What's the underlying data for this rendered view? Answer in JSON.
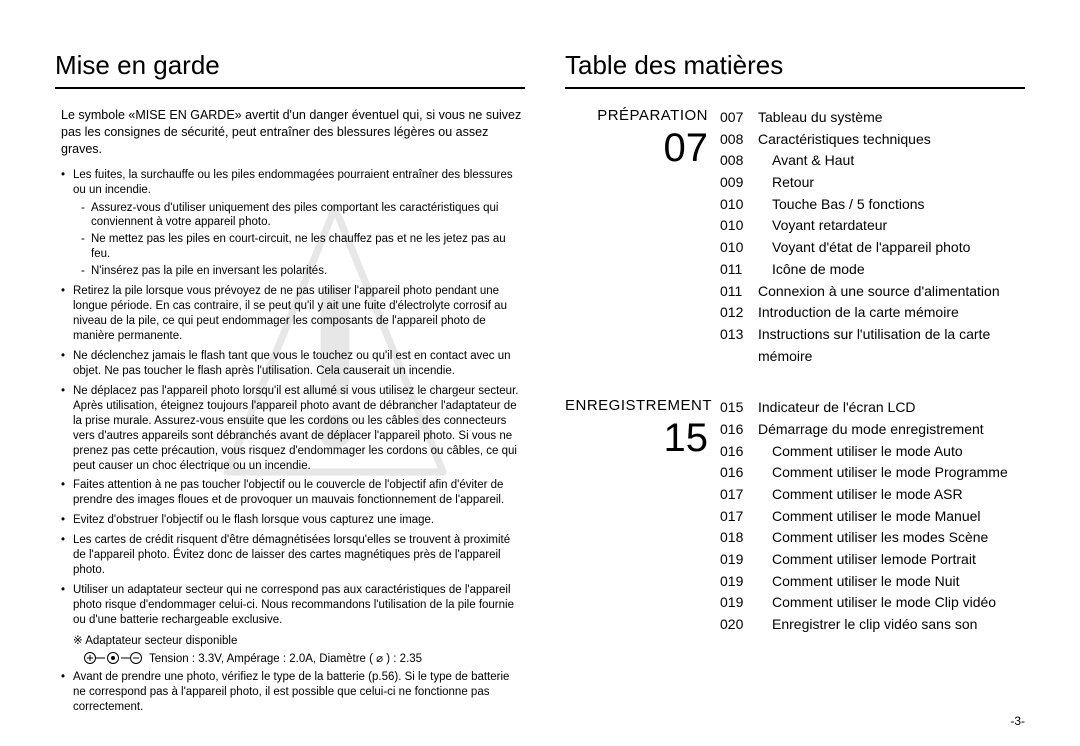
{
  "page_number": "-3-",
  "left": {
    "heading": "Mise en garde",
    "intro": "Le symbole «MISE EN GARDE» avertit d'un danger éventuel qui, si vous ne suivez pas les consignes de sécurité, peut entraîner des blessures légères ou assez graves.",
    "bullets": [
      {
        "text": "Les fuites, la surchauffe ou les piles endommagées pourraient entraîner des blessures ou un incendie.",
        "sub": [
          "Assurez-vous d'utiliser uniquement des piles comportant les caractéristiques qui conviennent à votre appareil photo.",
          "Ne mettez pas les piles en court-circuit, ne les chauffez pas et ne les jetez pas au feu.",
          "N'insérez pas la pile en inversant les polarités."
        ]
      },
      {
        "text": "Retirez la pile lorsque vous prévoyez de ne pas utiliser l'appareil photo pendant une longue période. En cas contraire, il se peut qu'il y ait une fuite d'électrolyte corrosif au niveau de la pile, ce qui peut endommager les composants de l'appareil photo de manière permanente."
      },
      {
        "text": "Ne déclenchez jamais le flash tant que vous le touchez ou qu'il est en contact avec un objet. Ne pas toucher le flash après l'utilisation. Cela causerait un incendie."
      },
      {
        "text": "Ne déplacez pas l'appareil photo lorsqu'il est allumé si vous utilisez le chargeur secteur. Après utilisation, éteignez toujours l'appareil photo avant de débrancher l'adaptateur de la prise murale. Assurez-vous ensuite que les cordons ou les câbles des connecteurs vers d'autres appareils sont débranchés avant de déplacer l'appareil photo. Si vous ne prenez pas cette précaution, vous risquez d'endommager les cordons ou câbles, ce qui peut causer un choc électrique ou un incendie."
      },
      {
        "text": "Faites attention à ne pas toucher l'objectif ou le couvercle de l'objectif afin d'éviter de prendre des images floues et de provoquer un mauvais fonctionnement de l'appareil."
      },
      {
        "text": "Evitez d'obstruer l'objectif ou le flash lorsque vous capturez une image."
      },
      {
        "text": "Les cartes de crédit risquent d'être démagnétisées lorsqu'elles se trouvent à proximité de l'appareil photo. Évitez donc de laisser des cartes magnétiques près de l'appareil photo."
      },
      {
        "text": "Utiliser un adaptateur secteur qui ne correspond pas aux caractéristiques de l'appareil photo risque d'endommager celui-ci. Nous recommandons l'utilisation de la pile fournie ou d'une batterie rechargeable exclusive."
      }
    ],
    "adapter_note": "※ Adaptateur secteur disponible",
    "adapter_spec": "Tension : 3.3V, Ampérage : 2.0A, Diamètre ( ⌀ ) : 2.35",
    "final_bullet": "Avant de prendre une photo, vérifiez le type de la batterie (p.56). Si le type de batterie ne correspond pas à l'appareil photo, il est possible que celui-ci ne fonctionne pas correctement."
  },
  "right": {
    "heading": "Table des matières",
    "sections": [
      {
        "name": "PRÉPARATION",
        "num": "07",
        "entries": [
          {
            "page": "007",
            "title": "Tableau du système",
            "indent": false
          },
          {
            "page": "008",
            "title": "Caractéristiques techniques",
            "indent": false
          },
          {
            "page": "008",
            "title": "Avant & Haut",
            "indent": true
          },
          {
            "page": "009",
            "title": "Retour",
            "indent": true
          },
          {
            "page": "010",
            "title": "Touche Bas / 5 fonctions",
            "indent": true
          },
          {
            "page": "010",
            "title": "Voyant retardateur",
            "indent": true
          },
          {
            "page": "010",
            "title": "Voyant d'état de l'appareil photo",
            "indent": true
          },
          {
            "page": "011",
            "title": "Icône de mode",
            "indent": true
          },
          {
            "page": "011",
            "title": "Connexion à une source d'alimentation",
            "indent": false
          },
          {
            "page": "012",
            "title": "Introduction de la carte mémoire",
            "indent": false
          },
          {
            "page": "013",
            "title": "Instructions sur l'utilisation de la carte mémoire",
            "indent": false
          }
        ]
      },
      {
        "name": "ENREGISTREMENT",
        "num": "15",
        "entries": [
          {
            "page": "015",
            "title": "Indicateur de l'écran LCD",
            "indent": false
          },
          {
            "page": "016",
            "title": "Démarrage du mode enregistrement",
            "indent": false
          },
          {
            "page": "016",
            "title": "Comment utiliser le mode Auto",
            "indent": true
          },
          {
            "page": "016",
            "title": "Comment utiliser le mode Programme",
            "indent": true
          },
          {
            "page": "017",
            "title": "Comment utiliser le mode ASR",
            "indent": true
          },
          {
            "page": "017",
            "title": "Comment utiliser le mode Manuel",
            "indent": true
          },
          {
            "page": "018",
            "title": "Comment utiliser les modes Scène",
            "indent": true
          },
          {
            "page": "019",
            "title": "Comment utiliser lemode Portrait",
            "indent": true
          },
          {
            "page": "019",
            "title": "Comment utiliser le mode Nuit",
            "indent": true
          },
          {
            "page": "019",
            "title": "Comment utiliser le mode Clip vidéo",
            "indent": true
          },
          {
            "page": "020",
            "title": "Enregistrer le clip vidéo sans son",
            "indent": true
          }
        ]
      }
    ]
  }
}
